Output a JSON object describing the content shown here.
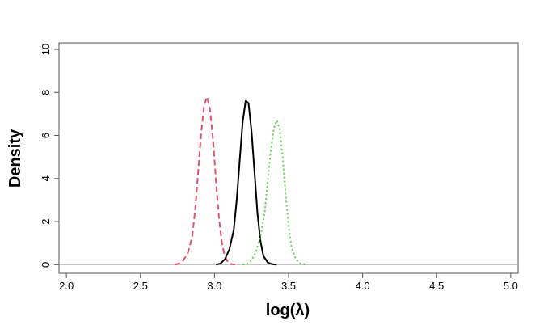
{
  "chart_data": {
    "type": "line",
    "title": "",
    "xlabel": "log(λ)",
    "ylabel": "Density",
    "xlim": [
      1.95,
      5.05
    ],
    "ylim": [
      -0.4,
      10.3
    ],
    "x_ticks": [
      "2.0",
      "2.5",
      "3.0",
      "3.5",
      "4.0",
      "4.5",
      "5.0"
    ],
    "y_ticks": [
      "0",
      "2",
      "4",
      "6",
      "8",
      "10"
    ],
    "grid": false,
    "legend": "none",
    "baseline": 0,
    "series": [
      {
        "color": "#df536b",
        "dash": "dashed",
        "x": [
          2.73,
          2.76,
          2.79,
          2.82,
          2.85,
          2.87,
          2.89,
          2.91,
          2.93,
          2.95,
          2.97,
          2.99,
          3.01,
          3.03,
          3.05,
          3.07,
          3.09,
          3.11,
          3.14
        ],
        "y": [
          0,
          0.05,
          0.2,
          0.55,
          1.3,
          2.6,
          4.3,
          6.1,
          7.4,
          7.8,
          7.2,
          5.8,
          3.9,
          2.2,
          1.0,
          0.4,
          0.12,
          0.03,
          0
        ]
      },
      {
        "color": "#000000",
        "dash": "solid",
        "x": [
          3.01,
          3.04,
          3.07,
          3.1,
          3.13,
          3.15,
          3.17,
          3.19,
          3.21,
          3.23,
          3.25,
          3.27,
          3.29,
          3.31,
          3.33,
          3.36,
          3.39,
          3.42
        ],
        "y": [
          0,
          0.05,
          0.25,
          0.7,
          1.6,
          3.0,
          4.8,
          6.6,
          7.6,
          7.5,
          6.2,
          4.3,
          2.4,
          1.1,
          0.4,
          0.1,
          0.02,
          0
        ]
      },
      {
        "color": "#61d04f",
        "dash": "dotted",
        "x": [
          3.19,
          3.22,
          3.25,
          3.28,
          3.31,
          3.34,
          3.36,
          3.38,
          3.4,
          3.42,
          3.44,
          3.46,
          3.48,
          3.5,
          3.52,
          3.55,
          3.58,
          3.62
        ],
        "y": [
          0,
          0.05,
          0.2,
          0.6,
          1.3,
          2.5,
          3.9,
          5.3,
          6.3,
          6.7,
          6.3,
          5.0,
          3.3,
          1.8,
          0.8,
          0.25,
          0.05,
          0
        ]
      }
    ]
  }
}
